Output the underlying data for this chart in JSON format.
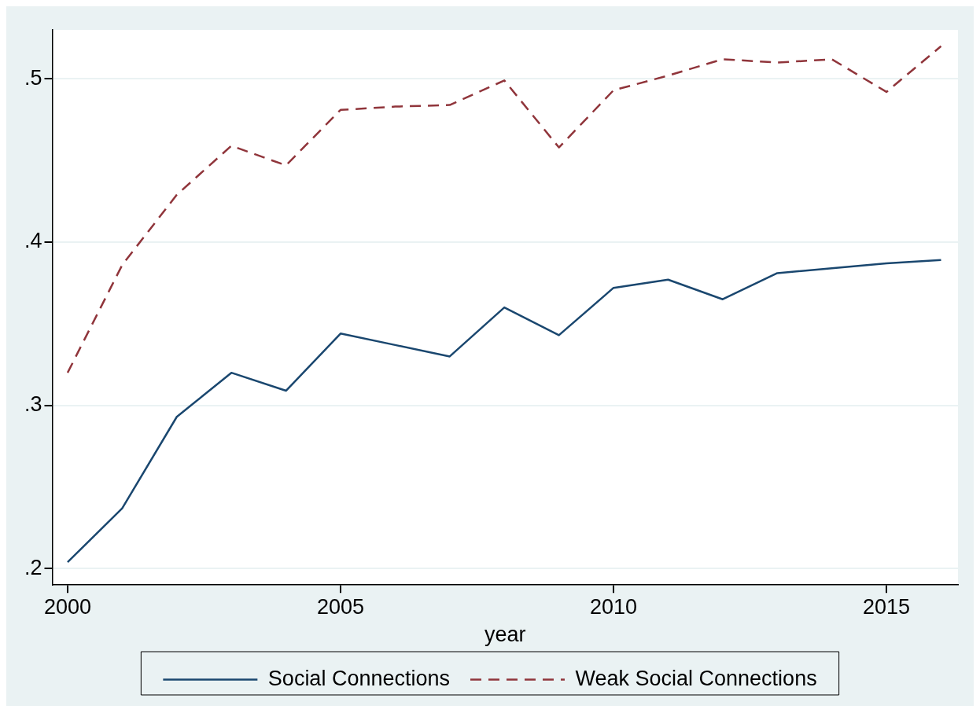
{
  "chart_data": {
    "type": "line",
    "xlabel": "year",
    "x": [
      2000,
      2001,
      2002,
      2003,
      2004,
      2005,
      2006,
      2007,
      2008,
      2009,
      2010,
      2011,
      2012,
      2013,
      2014,
      2015,
      2016
    ],
    "series": [
      {
        "name": "Social Connections",
        "color": "#1a476f",
        "line_style": "solid",
        "values": [
          0.204,
          0.237,
          0.293,
          0.32,
          0.309,
          0.344,
          0.337,
          0.33,
          0.36,
          0.343,
          0.372,
          0.377,
          0.365,
          0.381,
          0.384,
          0.387,
          0.389
        ]
      },
      {
        "name": "Weak Social Connections",
        "color": "#90353b",
        "line_style": "dashed",
        "values": [
          0.32,
          0.386,
          0.429,
          0.459,
          0.447,
          0.481,
          0.483,
          0.484,
          0.499,
          0.458,
          0.493,
          0.502,
          0.512,
          0.51,
          0.512,
          0.492,
          0.52
        ]
      }
    ],
    "xlim": [
      1999.72,
      2016.31
    ],
    "xticks": [
      2000,
      2005,
      2010,
      2015
    ],
    "ylim": [
      0.19,
      0.53
    ],
    "yticks": [
      {
        "value": 0.2,
        "label": ".2"
      },
      {
        "value": 0.3,
        "label": ".3"
      },
      {
        "value": 0.4,
        "label": ".4"
      },
      {
        "value": 0.5,
        "label": ".5"
      }
    ],
    "grid": "y",
    "legend": "bottom",
    "marker": "none"
  }
}
